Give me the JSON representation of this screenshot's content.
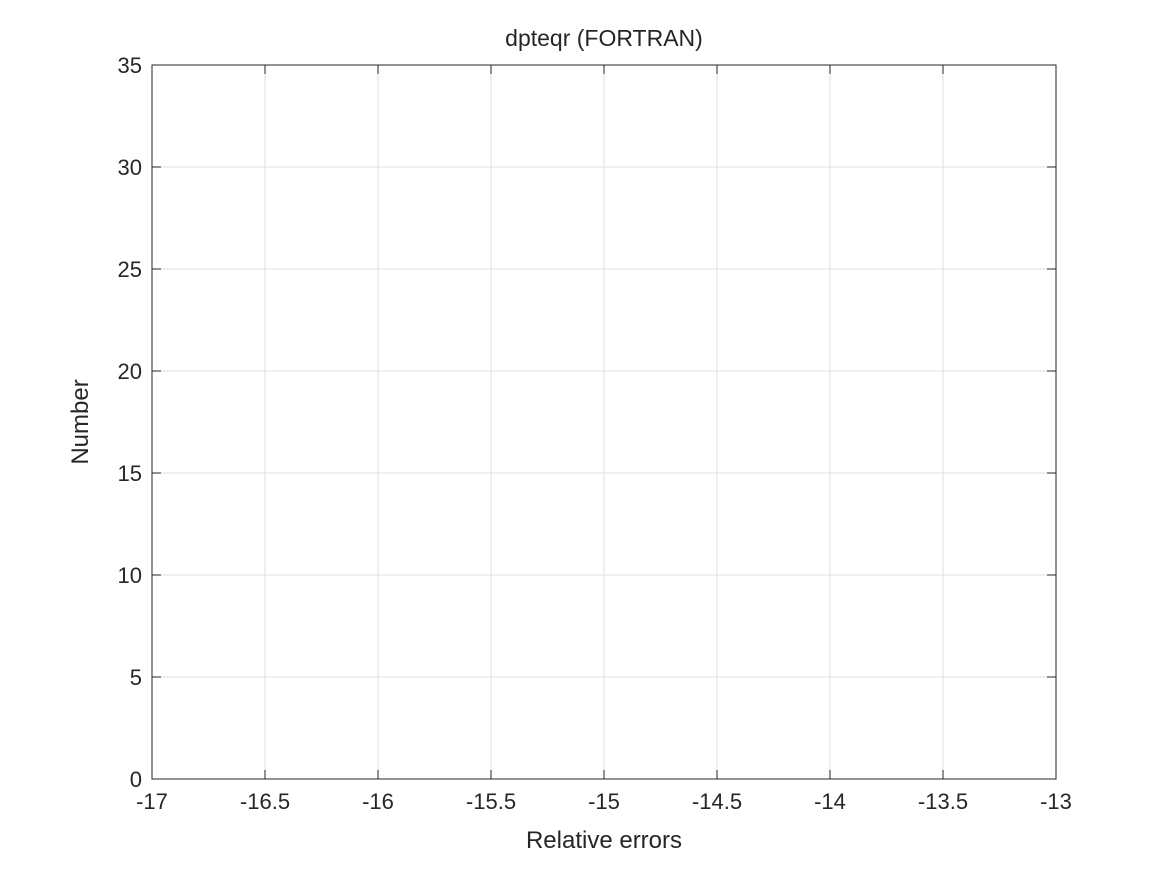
{
  "chart_data": {
    "type": "bar",
    "title": "dpteqr (FORTRAN)",
    "xlabel": "Relative errors",
    "ylabel": "Number",
    "xlim": [
      -17,
      -13
    ],
    "ylim": [
      0,
      35
    ],
    "x_ticks": [
      -17,
      -16.5,
      -16,
      -15.5,
      -15,
      -14.5,
      -14,
      -13.5,
      -13
    ],
    "x_tick_labels": [
      "-17",
      "-16.5",
      "-16",
      "-15.5",
      "-15",
      "-14.5",
      "-14",
      "-13.5",
      "-13"
    ],
    "y_ticks": [
      0,
      5,
      10,
      15,
      20,
      25,
      30,
      35
    ],
    "y_tick_labels": [
      "0",
      "5",
      "10",
      "15",
      "20",
      "25",
      "30",
      "35"
    ],
    "grid": true,
    "series": [
      {
        "x": [],
        "values": []
      }
    ],
    "colors": {
      "axis": "#262626",
      "grid": "#dfdfdf",
      "bar": "#0072bd"
    }
  }
}
